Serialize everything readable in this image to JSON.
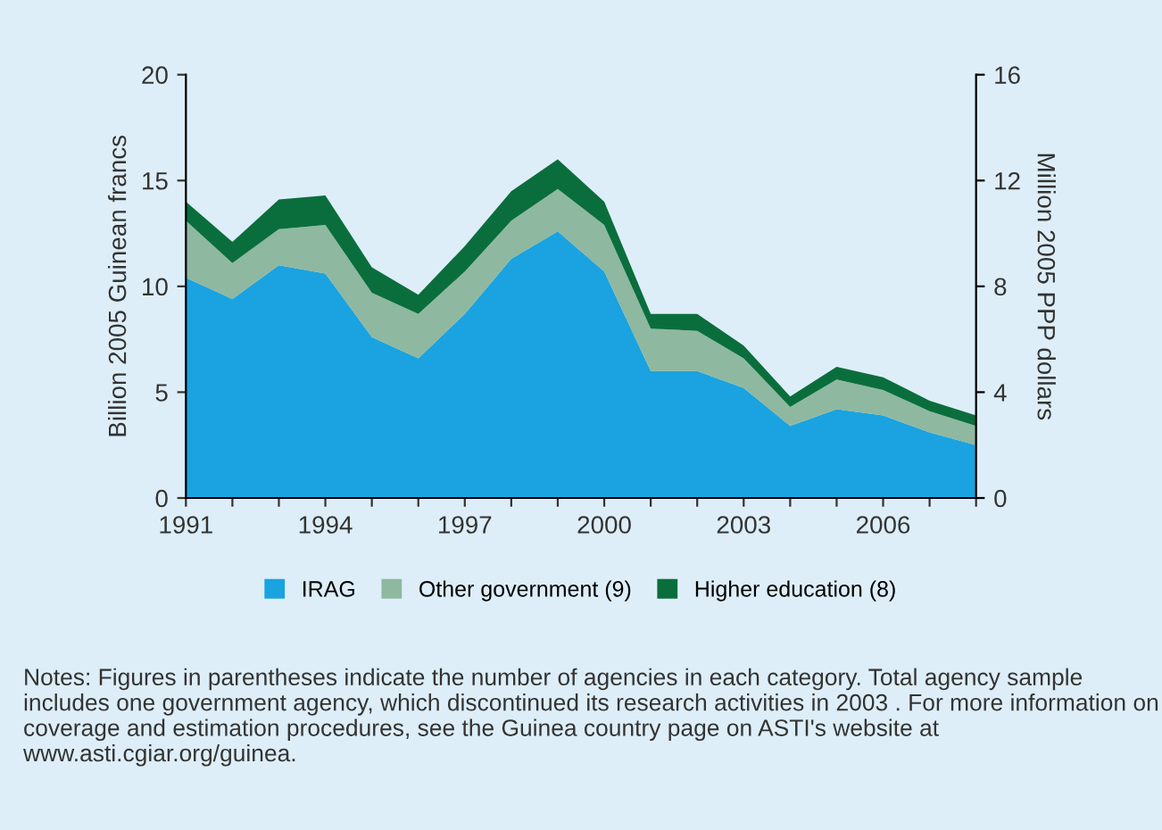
{
  "chart_data": {
    "type": "area",
    "stacked": true,
    "ylabel": "Billion 2005 Guinean francs",
    "y2label": "Million 2005 PPP dollars",
    "x": [
      1991,
      1992,
      1993,
      1994,
      1995,
      1996,
      1997,
      1998,
      1999,
      2000,
      2001,
      2002,
      2003,
      2004,
      2005,
      2006,
      2007,
      2008
    ],
    "series": [
      {
        "name": "IRAG",
        "color": "#1aa3e0",
        "values": [
          10.4,
          9.4,
          11.0,
          10.6,
          7.6,
          6.6,
          8.7,
          11.3,
          12.6,
          10.7,
          6.0,
          6.0,
          5.2,
          3.4,
          4.2,
          3.9,
          3.1,
          2.5
        ]
      },
      {
        "name": "Other government (9)",
        "color": "#8fb8a0",
        "values": [
          2.7,
          1.7,
          1.7,
          2.3,
          2.1,
          2.1,
          2.0,
          1.8,
          2.0,
          2.2,
          2.0,
          1.9,
          1.4,
          0.9,
          1.4,
          1.2,
          1.0,
          0.9
        ]
      },
      {
        "name": "Higher education (8)",
        "color": "#0a6e3c",
        "values": [
          0.9,
          1.0,
          1.4,
          1.4,
          1.2,
          0.9,
          1.2,
          1.4,
          1.4,
          1.1,
          0.7,
          0.8,
          0.6,
          0.5,
          0.6,
          0.6,
          0.5,
          0.5
        ]
      }
    ],
    "xlim": [
      1991,
      2008
    ],
    "xticks": [
      1991,
      {
        "value": 1992,
        "label": null
      },
      {
        "value": 1993,
        "label": null
      },
      1994,
      {
        "value": 1995,
        "label": null
      },
      {
        "value": 1996,
        "label": null
      },
      1997,
      {
        "value": 1998,
        "label": null
      },
      {
        "value": 1999,
        "label": null
      },
      2000,
      {
        "value": 2001,
        "label": null
      },
      {
        "value": 2002,
        "label": null
      },
      2003,
      {
        "value": 2004,
        "label": null
      },
      {
        "value": 2005,
        "label": null
      },
      2006,
      {
        "value": 2007,
        "label": null
      },
      {
        "value": 2008,
        "label": null
      }
    ],
    "ylim": [
      0,
      20
    ],
    "yticks": [
      0,
      5,
      10,
      15,
      20
    ],
    "y2lim": [
      0,
      16
    ],
    "y2ticks": [
      0,
      4,
      8,
      12,
      16
    ],
    "grid": false,
    "legend": "bottom",
    "annotations": [
      "Notes: Figures in parentheses indicate the number of agencies in each category. Total agency sample includes one government agency, which discontinued its research activities in 2003 . For more information on coverage and estimation procedures, see the Guinea country page on ASTI's website at www.asti.cgiar.org/guinea."
    ]
  }
}
